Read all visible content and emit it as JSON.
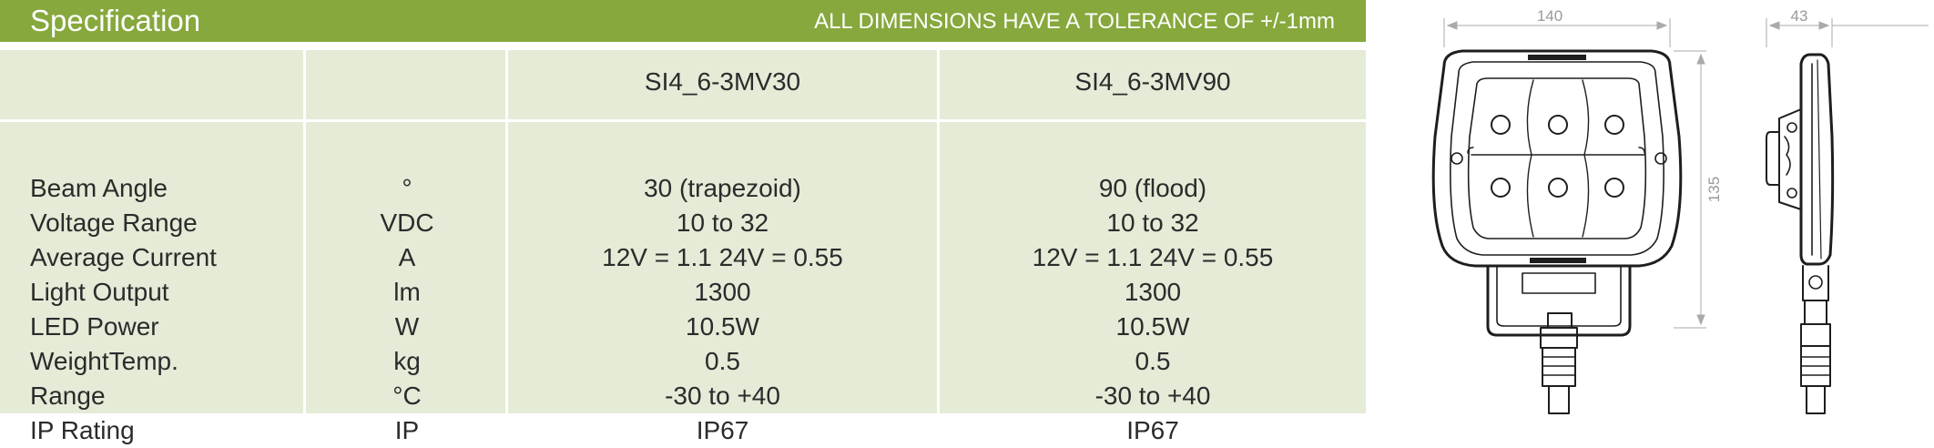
{
  "header": {
    "title": "Specification",
    "tolerance": "ALL DIMENSIONS HAVE A TOLERANCE OF +/-1mm"
  },
  "table": {
    "columns": [
      "",
      "",
      "SI4_6-3MV30",
      "SI4_6-3MV90"
    ],
    "rows": [
      {
        "label": "Beam Angle",
        "unit": "°",
        "a": "30 (trapezoid)",
        "b": "90 (flood)"
      },
      {
        "label": "Voltage Range",
        "unit": "VDC",
        "a": "10 to 32",
        "b": "10 to 32"
      },
      {
        "label": "Average Current",
        "unit": "A",
        "a": "12V = 1.1  24V = 0.55",
        "b": "12V = 1.1  24V = 0.55"
      },
      {
        "label": "Light Output",
        "unit": "lm",
        "a": "1300",
        "b": "1300"
      },
      {
        "label": "LED Power",
        "unit": "W",
        "a": "10.5W",
        "b": "10.5W"
      },
      {
        "label": "WeightTemp.",
        "unit": "kg",
        "a": "0.5",
        "b": "0.5"
      },
      {
        "label": "Range",
        "unit": "°C",
        "a": "-30 to +40",
        "b": "-30 to +40"
      },
      {
        "label": "IP Rating",
        "unit": "IP",
        "a": "IP67",
        "b": "IP67"
      }
    ]
  },
  "drawing": {
    "width_dim": "140",
    "height_dim": "135",
    "depth_dim": "43"
  },
  "colors": {
    "header_green": "#86a83c",
    "table_bg": "#e4ebd7",
    "text": "#2b2b2b",
    "dimension": "#999999"
  }
}
